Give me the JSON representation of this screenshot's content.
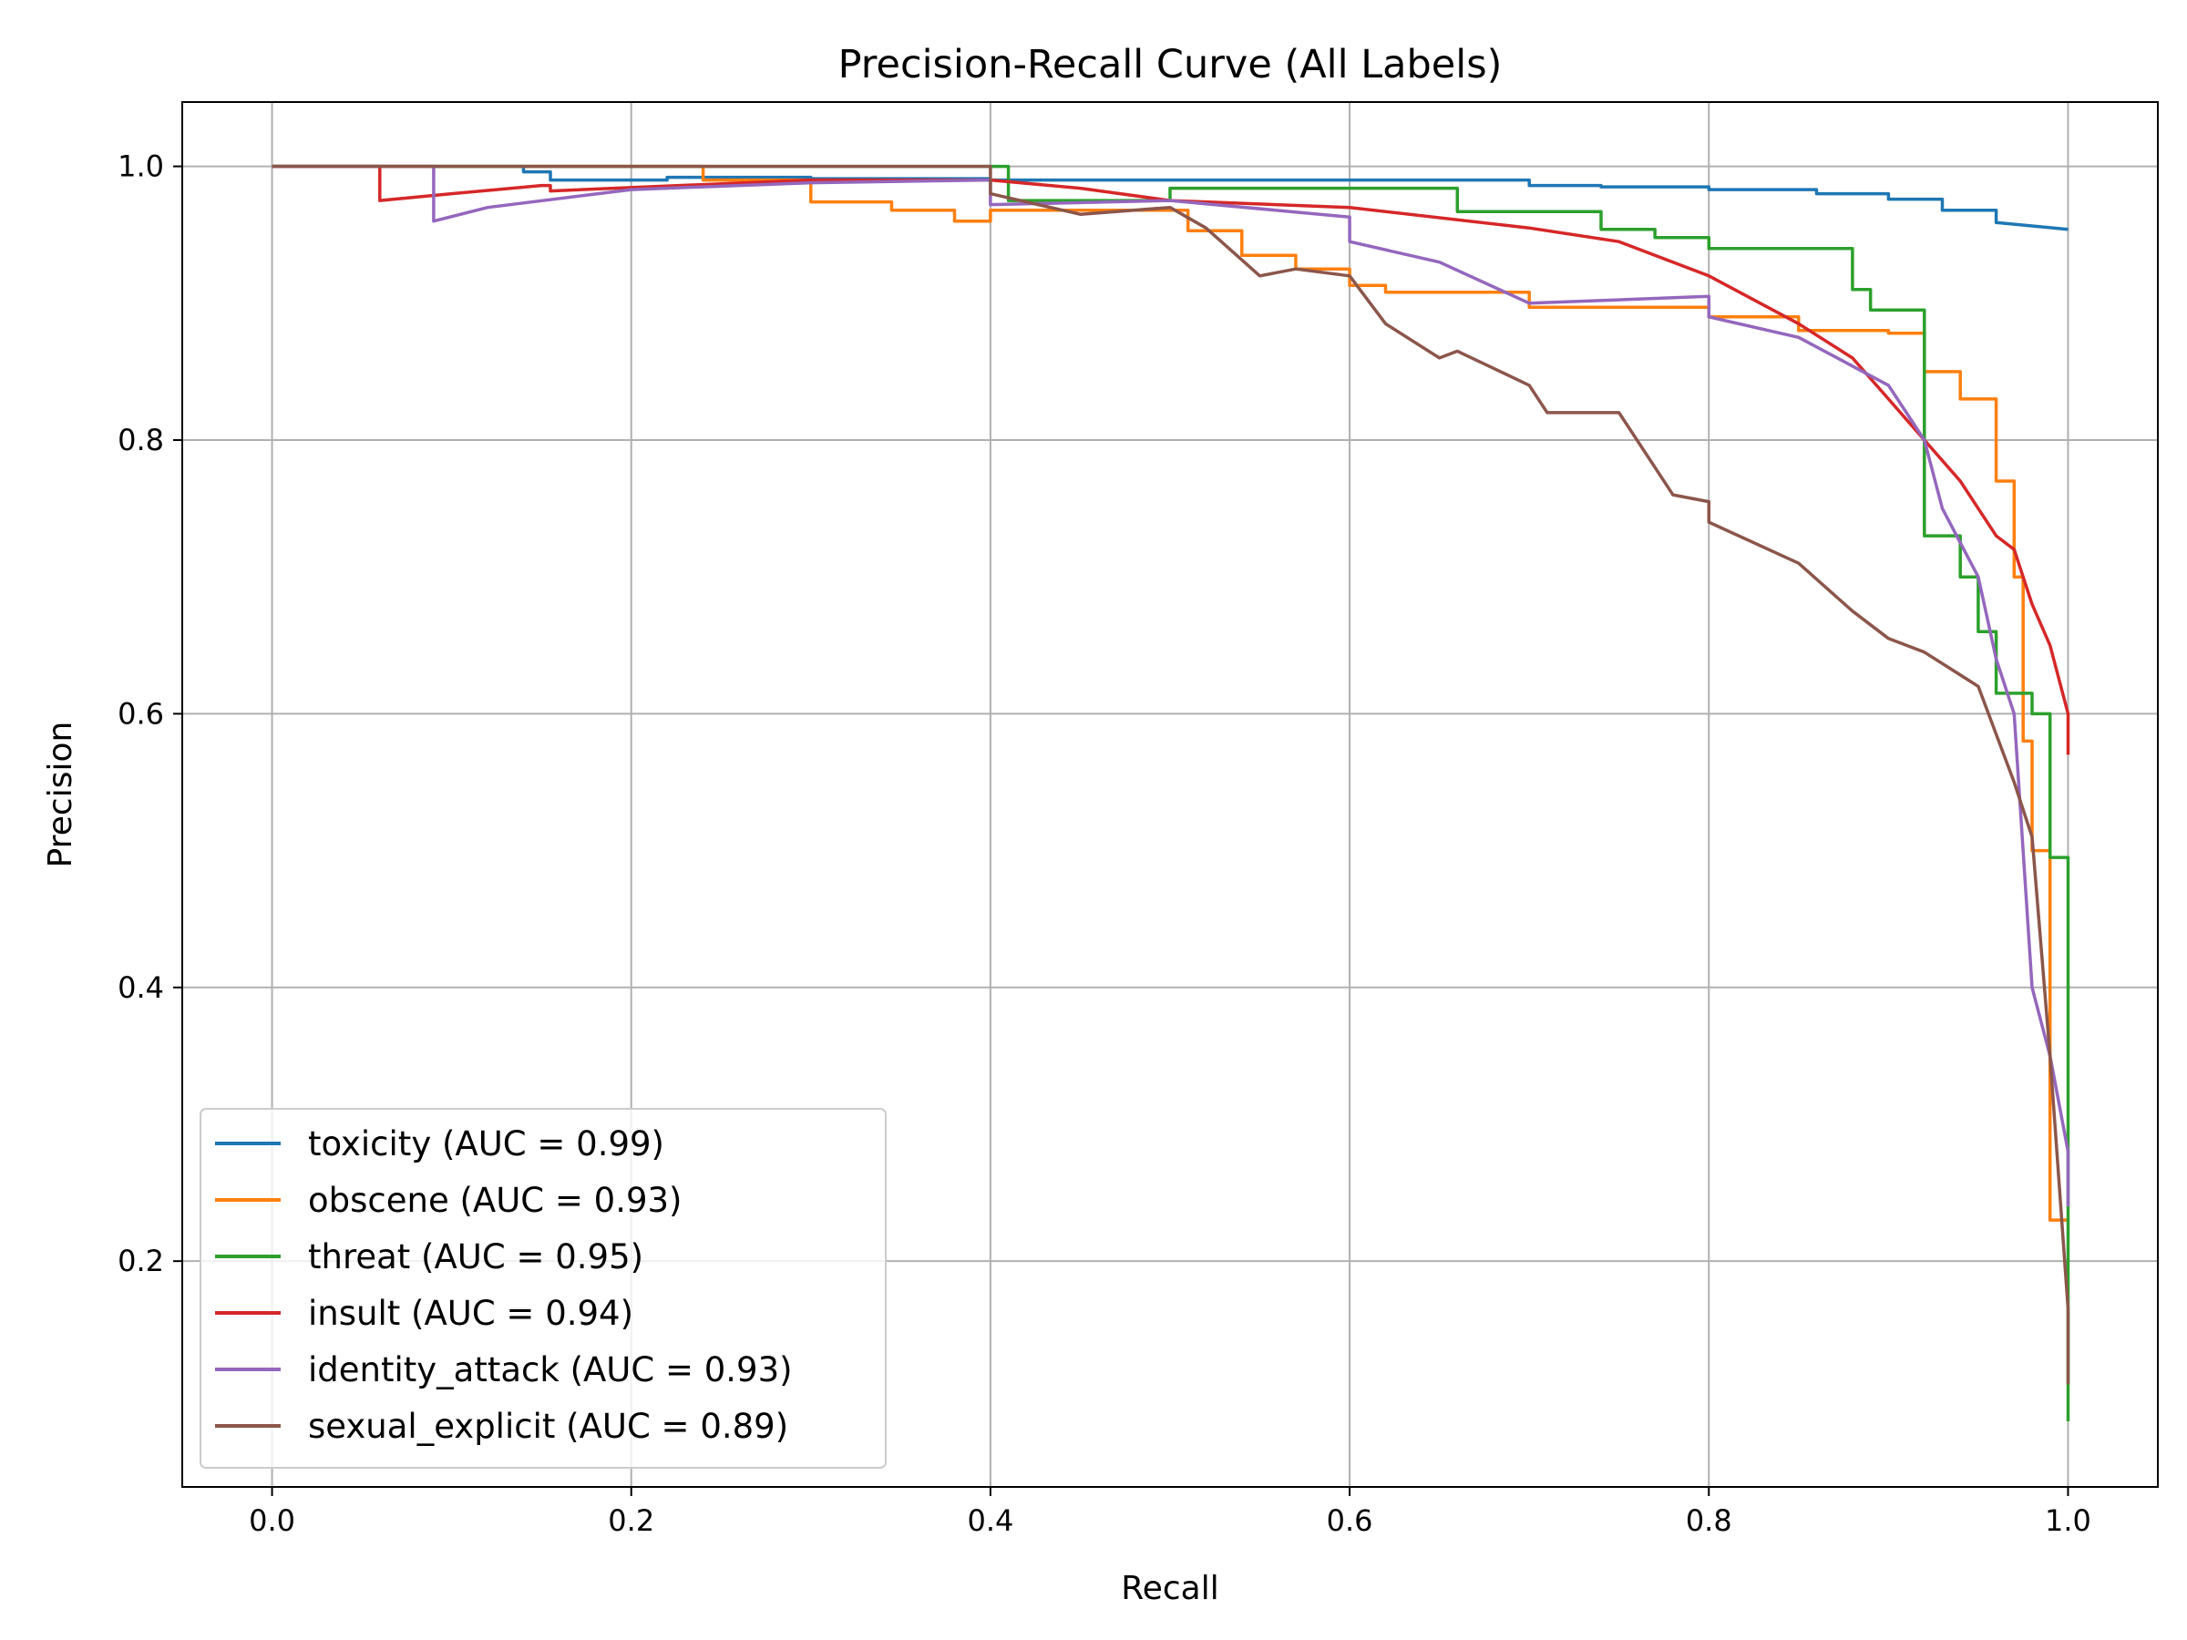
{
  "chart_data": {
    "type": "line",
    "title": "Precision-Recall Curve (All Labels)",
    "xlabel": "Recall",
    "ylabel": "Precision",
    "xlim": [
      -0.05,
      1.05
    ],
    "ylim": [
      0.035,
      1.047
    ],
    "xticks": [
      0.0,
      0.2,
      0.4,
      0.6,
      0.8,
      1.0
    ],
    "xtick_labels": [
      "0.0",
      "0.2",
      "0.4",
      "0.6",
      "0.8",
      "1.0"
    ],
    "yticks": [
      0.2,
      0.4,
      0.6,
      0.8,
      1.0
    ],
    "ytick_labels": [
      "0.2",
      "0.4",
      "0.6",
      "0.8",
      "1.0"
    ],
    "grid": true,
    "legend_position": "lower-left",
    "series": [
      {
        "name": "toxicity (AUC = 0.99)",
        "color": "#1f77b4",
        "x": [
          0.0,
          0.14,
          0.14,
          0.155,
          0.155,
          0.22,
          0.22,
          0.3,
          0.3,
          0.4,
          0.4,
          0.5,
          0.5,
          0.6,
          0.6,
          0.7,
          0.7,
          0.74,
          0.74,
          0.8,
          0.8,
          0.86,
          0.86,
          0.9,
          0.9,
          0.93,
          0.93,
          0.96,
          0.96,
          1.0
        ],
        "y": [
          1.0,
          1.0,
          0.996,
          0.996,
          0.99,
          0.99,
          0.992,
          0.992,
          0.991,
          0.991,
          0.99,
          0.99,
          0.99,
          0.99,
          0.99,
          0.99,
          0.986,
          0.986,
          0.985,
          0.985,
          0.983,
          0.983,
          0.98,
          0.98,
          0.976,
          0.976,
          0.968,
          0.968,
          0.959,
          0.954
        ]
      },
      {
        "name": "obscene (AUC = 0.93)",
        "color": "#ff7f0e",
        "x": [
          0.0,
          0.24,
          0.24,
          0.3,
          0.3,
          0.345,
          0.345,
          0.38,
          0.38,
          0.4,
          0.4,
          0.51,
          0.51,
          0.54,
          0.54,
          0.57,
          0.57,
          0.6,
          0.6,
          0.62,
          0.62,
          0.7,
          0.7,
          0.8,
          0.8,
          0.85,
          0.85,
          0.9,
          0.9,
          0.92,
          0.92,
          0.94,
          0.94,
          0.96,
          0.96,
          0.97,
          0.97,
          0.975,
          0.975,
          0.98,
          0.98,
          0.99,
          0.99,
          1.0
        ],
        "y": [
          1.0,
          1.0,
          0.99,
          0.99,
          0.974,
          0.974,
          0.968,
          0.968,
          0.96,
          0.96,
          0.968,
          0.968,
          0.953,
          0.953,
          0.935,
          0.935,
          0.925,
          0.925,
          0.913,
          0.913,
          0.908,
          0.908,
          0.897,
          0.897,
          0.89,
          0.89,
          0.88,
          0.88,
          0.878,
          0.878,
          0.85,
          0.85,
          0.83,
          0.83,
          0.77,
          0.77,
          0.7,
          0.7,
          0.58,
          0.58,
          0.5,
          0.5,
          0.23,
          0.23
        ]
      },
      {
        "name": "threat (AUC = 0.95)",
        "color": "#2ca02c",
        "x": [
          0.0,
          0.3,
          0.3,
          0.41,
          0.41,
          0.5,
          0.5,
          0.66,
          0.66,
          0.74,
          0.74,
          0.77,
          0.77,
          0.8,
          0.8,
          0.88,
          0.88,
          0.89,
          0.89,
          0.92,
          0.92,
          0.94,
          0.94,
          0.95,
          0.95,
          0.96,
          0.96,
          0.98,
          0.98,
          0.99,
          0.99,
          1.0,
          1.0
        ],
        "y": [
          1.0,
          1.0,
          1.0,
          1.0,
          0.975,
          0.975,
          0.984,
          0.984,
          0.967,
          0.967,
          0.954,
          0.954,
          0.948,
          0.948,
          0.94,
          0.94,
          0.91,
          0.91,
          0.895,
          0.895,
          0.73,
          0.73,
          0.7,
          0.7,
          0.66,
          0.66,
          0.615,
          0.615,
          0.6,
          0.6,
          0.495,
          0.495,
          0.083
        ]
      },
      {
        "name": "insult (AUC = 0.94)",
        "color": "#d62728",
        "x": [
          0.0,
          0.06,
          0.06,
          0.1,
          0.15,
          0.155,
          0.155,
          0.3,
          0.4,
          0.45,
          0.5,
          0.6,
          0.7,
          0.75,
          0.8,
          0.85,
          0.88,
          0.9,
          0.92,
          0.94,
          0.96,
          0.97,
          0.98,
          0.99,
          1.0,
          1.0
        ],
        "y": [
          1.0,
          1.0,
          0.975,
          0.98,
          0.986,
          0.986,
          0.982,
          0.99,
          0.99,
          0.984,
          0.975,
          0.97,
          0.955,
          0.945,
          0.92,
          0.885,
          0.86,
          0.83,
          0.8,
          0.77,
          0.73,
          0.72,
          0.68,
          0.65,
          0.6,
          0.57
        ]
      },
      {
        "name": "identity_attack (AUC = 0.93)",
        "color": "#9467bd",
        "x": [
          0.0,
          0.09,
          0.09,
          0.12,
          0.2,
          0.3,
          0.4,
          0.4,
          0.5,
          0.6,
          0.6,
          0.65,
          0.7,
          0.8,
          0.8,
          0.85,
          0.9,
          0.92,
          0.93,
          0.95,
          0.96,
          0.97,
          0.98,
          0.99,
          1.0,
          1.0
        ],
        "y": [
          1.0,
          1.0,
          0.96,
          0.97,
          0.983,
          0.988,
          0.99,
          0.972,
          0.975,
          0.963,
          0.945,
          0.93,
          0.9,
          0.905,
          0.89,
          0.875,
          0.84,
          0.8,
          0.75,
          0.7,
          0.64,
          0.6,
          0.4,
          0.35,
          0.28,
          0.24
        ]
      },
      {
        "name": "sexual_explicit (AUC = 0.89)",
        "color": "#8c564b",
        "x": [
          0.0,
          0.4,
          0.4,
          0.45,
          0.5,
          0.52,
          0.55,
          0.57,
          0.6,
          0.62,
          0.65,
          0.66,
          0.7,
          0.71,
          0.75,
          0.78,
          0.8,
          0.8,
          0.85,
          0.88,
          0.9,
          0.92,
          0.95,
          0.97,
          0.98,
          0.99,
          1.0,
          1.0
        ],
        "y": [
          1.0,
          1.0,
          0.98,
          0.965,
          0.97,
          0.955,
          0.92,
          0.925,
          0.92,
          0.885,
          0.86,
          0.865,
          0.84,
          0.82,
          0.82,
          0.76,
          0.755,
          0.74,
          0.71,
          0.675,
          0.655,
          0.645,
          0.62,
          0.55,
          0.51,
          0.35,
          0.165,
          0.11
        ]
      }
    ]
  }
}
